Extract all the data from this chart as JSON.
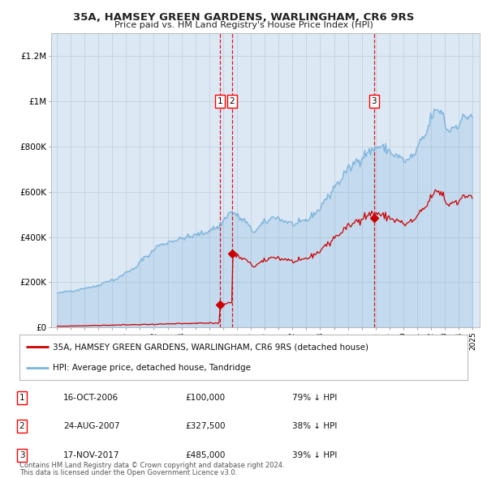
{
  "title1": "35A, HAMSEY GREEN GARDENS, WARLINGHAM, CR6 9RS",
  "title2": "Price paid vs. HM Land Registry's House Price Index (HPI)",
  "sale1_date_x": 2006.79,
  "sale1_price": 100000,
  "sale2_date_x": 2007.64,
  "sale2_price": 327500,
  "sale3_date_x": 2017.88,
  "sale3_price": 485000,
  "legend_red": "35A, HAMSEY GREEN GARDENS, WARLINGHAM, CR6 9RS (detached house)",
  "legend_blue": "HPI: Average price, detached house, Tandridge",
  "table_rows": [
    [
      "1",
      "16-OCT-2006",
      "£100,000",
      "79% ↓ HPI"
    ],
    [
      "2",
      "24-AUG-2007",
      "£327,500",
      "38% ↓ HPI"
    ],
    [
      "3",
      "17-NOV-2017",
      "£485,000",
      "39% ↓ HPI"
    ]
  ],
  "footnote1": "Contains HM Land Registry data © Crown copyright and database right 2024.",
  "footnote2": "This data is licensed under the Open Government Licence v3.0.",
  "hpi_color": "#7ab4dc",
  "hpi_fill": "#ddeeff",
  "price_color": "#cc0000",
  "vline_color": "#dd0000",
  "bg_color": "#dde8f5",
  "plot_bg": "#ffffff",
  "grid_color": "#c0ccd8",
  "ylim_max": 1300000,
  "xlim_start": 1994.6,
  "xlim_end": 2025.5,
  "yticks": [
    0,
    200000,
    400000,
    600000,
    800000,
    1000000,
    1200000
  ],
  "ylabels": [
    "£0",
    "£200K",
    "£400K",
    "£600K",
    "£800K",
    "£1M",
    "£1.2M"
  ]
}
